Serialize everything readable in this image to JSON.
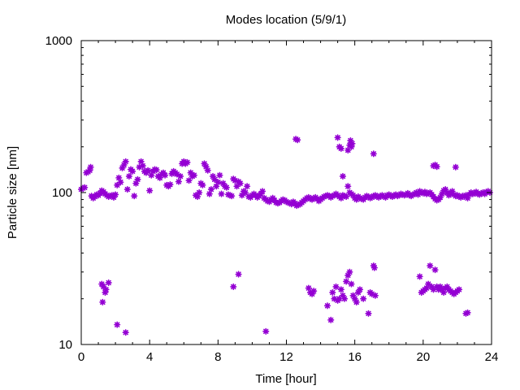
{
  "chart_data": {
    "type": "scatter",
    "title": "Modes location (5/9/1)",
    "xlabel": "Time [hour]",
    "ylabel": "Particle size [nm]",
    "xlim": [
      0,
      24
    ],
    "ylim": [
      10,
      1000
    ],
    "yscale": "log",
    "grid": false,
    "legend": "none",
    "color": "#9400d3",
    "marker": "star",
    "xticks": [
      0,
      4,
      8,
      12,
      16,
      20,
      24
    ],
    "xtick_labels": [
      "0",
      "4",
      "8",
      "12",
      "16",
      "20",
      "24"
    ],
    "yticks": [
      10,
      100,
      1000
    ],
    "ytick_labels": [
      "10",
      "100",
      "1000"
    ],
    "points": [
      [
        0.0,
        105
      ],
      [
        0.1,
        107
      ],
      [
        0.2,
        108
      ],
      [
        0.3,
        135
      ],
      [
        0.4,
        137
      ],
      [
        0.5,
        140
      ],
      [
        0.55,
        147
      ],
      [
        0.6,
        95
      ],
      [
        0.7,
        92
      ],
      [
        0.8,
        94
      ],
      [
        0.9,
        97
      ],
      [
        1.0,
        96
      ],
      [
        1.1,
        99
      ],
      [
        1.2,
        103
      ],
      [
        1.3,
        101
      ],
      [
        1.4,
        98
      ],
      [
        1.5,
        96
      ],
      [
        1.6,
        94
      ],
      [
        1.7,
        95
      ],
      [
        1.8,
        96
      ],
      [
        1.9,
        93
      ],
      [
        2.0,
        97
      ],
      [
        2.1,
        112
      ],
      [
        2.2,
        125
      ],
      [
        2.3,
        117
      ],
      [
        2.4,
        145
      ],
      [
        2.5,
        152
      ],
      [
        2.6,
        160
      ],
      [
        2.7,
        105
      ],
      [
        2.8,
        128
      ],
      [
        2.9,
        142
      ],
      [
        3.0,
        138
      ],
      [
        3.1,
        95
      ],
      [
        3.2,
        115
      ],
      [
        3.3,
        122
      ],
      [
        3.4,
        147
      ],
      [
        3.5,
        160
      ],
      [
        3.6,
        150
      ],
      [
        3.7,
        138
      ],
      [
        3.8,
        135
      ],
      [
        3.9,
        140
      ],
      [
        4.0,
        103
      ],
      [
        4.1,
        130
      ],
      [
        4.2,
        138
      ],
      [
        4.3,
        142
      ],
      [
        4.4,
        141
      ],
      [
        4.5,
        128
      ],
      [
        4.6,
        125
      ],
      [
        4.7,
        132
      ],
      [
        4.8,
        135
      ],
      [
        4.9,
        130
      ],
      [
        5.0,
        112
      ],
      [
        5.1,
        110
      ],
      [
        5.2,
        113
      ],
      [
        5.3,
        133
      ],
      [
        5.4,
        138
      ],
      [
        5.5,
        135
      ],
      [
        5.6,
        132
      ],
      [
        5.7,
        118
      ],
      [
        5.8,
        128
      ],
      [
        5.9,
        155
      ],
      [
        6.0,
        160
      ],
      [
        6.1,
        155
      ],
      [
        6.2,
        158
      ],
      [
        6.3,
        120
      ],
      [
        6.4,
        135
      ],
      [
        6.5,
        128
      ],
      [
        6.6,
        130
      ],
      [
        6.7,
        96
      ],
      [
        6.8,
        94
      ],
      [
        6.9,
        100
      ],
      [
        7.0,
        115
      ],
      [
        7.1,
        112
      ],
      [
        7.2,
        155
      ],
      [
        7.3,
        148
      ],
      [
        7.4,
        140
      ],
      [
        7.5,
        98
      ],
      [
        7.6,
        105
      ],
      [
        7.7,
        128
      ],
      [
        7.8,
        122
      ],
      [
        7.9,
        110
      ],
      [
        8.0,
        117
      ],
      [
        8.1,
        130
      ],
      [
        8.2,
        98
      ],
      [
        8.3,
        115
      ],
      [
        8.4,
        110
      ],
      [
        8.5,
        108
      ],
      [
        8.6,
        97
      ],
      [
        8.7,
        96
      ],
      [
        8.8,
        95
      ],
      [
        8.9,
        123
      ],
      [
        9.0,
        120
      ],
      [
        9.1,
        110
      ],
      [
        9.2,
        118
      ],
      [
        9.3,
        115
      ],
      [
        9.4,
        96
      ],
      [
        9.5,
        102
      ],
      [
        9.6,
        100
      ],
      [
        9.7,
        110
      ],
      [
        9.8,
        94
      ],
      [
        9.9,
        93
      ],
      [
        10.0,
        96
      ],
      [
        10.1,
        98
      ],
      [
        10.2,
        96
      ],
      [
        10.3,
        93
      ],
      [
        10.4,
        95
      ],
      [
        10.5,
        98
      ],
      [
        10.6,
        102
      ],
      [
        10.7,
        92
      ],
      [
        10.8,
        90
      ],
      [
        10.9,
        88
      ],
      [
        11.0,
        87
      ],
      [
        11.1,
        90
      ],
      [
        11.2,
        92
      ],
      [
        11.3,
        89
      ],
      [
        11.4,
        86
      ],
      [
        11.5,
        85
      ],
      [
        11.6,
        86
      ],
      [
        11.7,
        88
      ],
      [
        11.8,
        90
      ],
      [
        11.9,
        89
      ],
      [
        12.0,
        87
      ],
      [
        12.1,
        86
      ],
      [
        12.2,
        85
      ],
      [
        12.3,
        84
      ],
      [
        12.4,
        87
      ],
      [
        12.5,
        85
      ],
      [
        12.6,
        82
      ],
      [
        12.7,
        83
      ],
      [
        12.8,
        84
      ],
      [
        12.9,
        86
      ],
      [
        13.0,
        88
      ],
      [
        13.1,
        90
      ],
      [
        13.2,
        92
      ],
      [
        13.3,
        93
      ],
      [
        13.4,
        91
      ],
      [
        13.5,
        90
      ],
      [
        13.6,
        92
      ],
      [
        13.7,
        93
      ],
      [
        13.8,
        91
      ],
      [
        13.9,
        88
      ],
      [
        14.0,
        90
      ],
      [
        14.1,
        92
      ],
      [
        14.2,
        94
      ],
      [
        14.3,
        95
      ],
      [
        14.4,
        96
      ],
      [
        14.5,
        95
      ],
      [
        14.6,
        93
      ],
      [
        14.7,
        95
      ],
      [
        14.8,
        96
      ],
      [
        14.9,
        98
      ],
      [
        15.0,
        96
      ],
      [
        15.1,
        94
      ],
      [
        15.2,
        92
      ],
      [
        15.3,
        96
      ],
      [
        15.4,
        95
      ],
      [
        15.5,
        94
      ],
      [
        15.6,
        110
      ],
      [
        15.7,
        100
      ],
      [
        15.8,
        98
      ],
      [
        15.9,
        96
      ],
      [
        16.0,
        92
      ],
      [
        16.1,
        90
      ],
      [
        16.2,
        94
      ],
      [
        16.3,
        92
      ],
      [
        16.4,
        91
      ],
      [
        16.5,
        90
      ],
      [
        16.6,
        93
      ],
      [
        16.7,
        95
      ],
      [
        16.8,
        94
      ],
      [
        16.9,
        92
      ],
      [
        17.0,
        93
      ],
      [
        17.1,
        95
      ],
      [
        17.2,
        96
      ],
      [
        17.3,
        94
      ],
      [
        17.4,
        93
      ],
      [
        17.5,
        95
      ],
      [
        17.6,
        96
      ],
      [
        17.7,
        94
      ],
      [
        17.8,
        93
      ],
      [
        17.9,
        96
      ],
      [
        18.0,
        97
      ],
      [
        18.1,
        95
      ],
      [
        18.2,
        94
      ],
      [
        18.3,
        96
      ],
      [
        18.4,
        97
      ],
      [
        18.5,
        95
      ],
      [
        18.6,
        96
      ],
      [
        18.7,
        98
      ],
      [
        18.8,
        97
      ],
      [
        18.9,
        96
      ],
      [
        19.0,
        97
      ],
      [
        19.1,
        99
      ],
      [
        19.2,
        96
      ],
      [
        19.3,
        95
      ],
      [
        19.4,
        97
      ],
      [
        19.5,
        98
      ],
      [
        19.6,
        100
      ],
      [
        19.7,
        97
      ],
      [
        19.8,
        102
      ],
      [
        19.9,
        100
      ],
      [
        20.0,
        99
      ],
      [
        20.1,
        101
      ],
      [
        20.2,
        98
      ],
      [
        20.3,
        99
      ],
      [
        20.4,
        100
      ],
      [
        20.5,
        97
      ],
      [
        20.6,
        94
      ],
      [
        20.7,
        91
      ],
      [
        20.8,
        89
      ],
      [
        20.9,
        90
      ],
      [
        21.0,
        93
      ],
      [
        21.1,
        98
      ],
      [
        21.2,
        103
      ],
      [
        21.3,
        105
      ],
      [
        21.4,
        100
      ],
      [
        21.5,
        96
      ],
      [
        21.6,
        99
      ],
      [
        21.7,
        102
      ],
      [
        21.8,
        97
      ],
      [
        21.9,
        95
      ],
      [
        22.0,
        96
      ],
      [
        22.1,
        94
      ],
      [
        22.2,
        93
      ],
      [
        22.3,
        95
      ],
      [
        22.4,
        94
      ],
      [
        22.5,
        96
      ],
      [
        22.6,
        92
      ],
      [
        22.7,
        97
      ],
      [
        22.8,
        100
      ],
      [
        22.9,
        98
      ],
      [
        23.0,
        99
      ],
      [
        23.1,
        101
      ],
      [
        23.2,
        98
      ],
      [
        23.3,
        97
      ],
      [
        23.4,
        99
      ],
      [
        23.5,
        100
      ],
      [
        23.6,
        98
      ],
      [
        23.7,
        101
      ],
      [
        23.8,
        102
      ],
      [
        23.9,
        100
      ],
      [
        12.55,
        225
      ],
      [
        12.65,
        222
      ],
      [
        15.0,
        230
      ],
      [
        15.1,
        200
      ],
      [
        15.2,
        195
      ],
      [
        15.3,
        128
      ],
      [
        15.6,
        190
      ],
      [
        15.7,
        205
      ],
      [
        15.75,
        220
      ],
      [
        15.8,
        200
      ],
      [
        15.85,
        210
      ],
      [
        17.1,
        180
      ],
      [
        20.6,
        150
      ],
      [
        20.7,
        152
      ],
      [
        20.8,
        148
      ],
      [
        21.9,
        147
      ],
      [
        1.2,
        25
      ],
      [
        1.25,
        19
      ],
      [
        1.3,
        24
      ],
      [
        1.4,
        22
      ],
      [
        1.45,
        23
      ],
      [
        1.6,
        25.5
      ],
      [
        2.1,
        13.5
      ],
      [
        2.6,
        12
      ],
      [
        8.9,
        24
      ],
      [
        9.2,
        29
      ],
      [
        10.8,
        12.2
      ],
      [
        13.3,
        23.5
      ],
      [
        13.4,
        22
      ],
      [
        13.5,
        21.5
      ],
      [
        13.6,
        22.5
      ],
      [
        14.4,
        18
      ],
      [
        14.6,
        14.5
      ],
      [
        14.7,
        22
      ],
      [
        14.8,
        20
      ],
      [
        14.9,
        24
      ],
      [
        15.0,
        19.5
      ],
      [
        15.1,
        20
      ],
      [
        15.2,
        23
      ],
      [
        15.3,
        21
      ],
      [
        15.4,
        20
      ],
      [
        15.5,
        26
      ],
      [
        15.6,
        28.5
      ],
      [
        15.7,
        30
      ],
      [
        15.8,
        25
      ],
      [
        15.9,
        21
      ],
      [
        16.0,
        20
      ],
      [
        16.1,
        19
      ],
      [
        16.2,
        22
      ],
      [
        16.3,
        23
      ],
      [
        16.5,
        20
      ],
      [
        16.8,
        16
      ],
      [
        16.9,
        22
      ],
      [
        17.0,
        21.5
      ],
      [
        17.1,
        33
      ],
      [
        17.15,
        32
      ],
      [
        17.2,
        21
      ],
      [
        19.8,
        28
      ],
      [
        19.9,
        22
      ],
      [
        20.0,
        22.5
      ],
      [
        20.1,
        23
      ],
      [
        20.2,
        23.5
      ],
      [
        20.3,
        25
      ],
      [
        20.4,
        33
      ],
      [
        20.5,
        24
      ],
      [
        20.6,
        23
      ],
      [
        20.7,
        31
      ],
      [
        20.8,
        24
      ],
      [
        20.9,
        23
      ],
      [
        21.0,
        24
      ],
      [
        21.1,
        23
      ],
      [
        21.2,
        22
      ],
      [
        21.3,
        23.5
      ],
      [
        21.4,
        24
      ],
      [
        21.5,
        23
      ],
      [
        21.6,
        22.5
      ],
      [
        21.7,
        22
      ],
      [
        21.8,
        21.5
      ],
      [
        21.9,
        22
      ],
      [
        22.0,
        22.5
      ],
      [
        22.1,
        23
      ],
      [
        22.5,
        16
      ],
      [
        22.6,
        16.2
      ]
    ]
  }
}
